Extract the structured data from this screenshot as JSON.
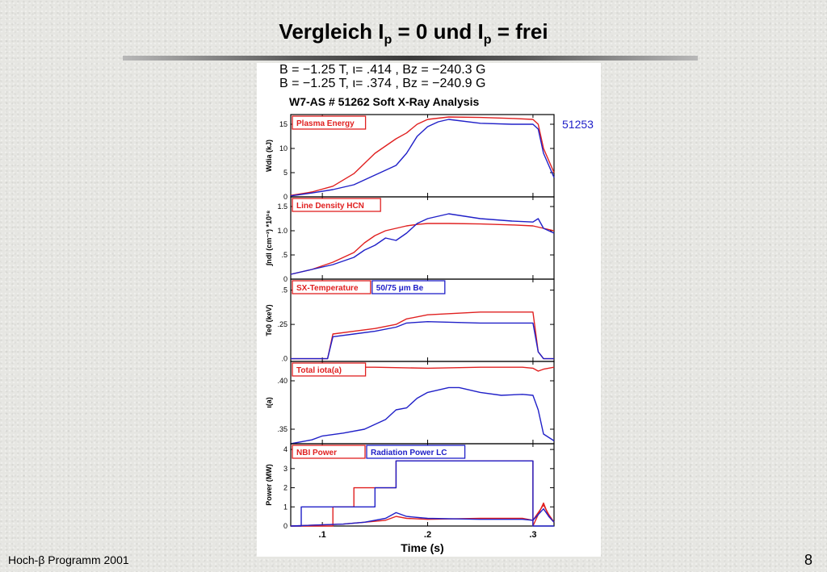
{
  "slide": {
    "title_pre": "Vergleich I",
    "title_sub1": "p",
    "title_mid": " = 0 und I",
    "title_sub2": "p",
    "title_post": " = frei",
    "footer_left": "Hoch-β Programm 2001",
    "page_number": "8"
  },
  "header": {
    "line1": "B = −1.25  T,  ι= .414   ,  Bz = −240.3 G",
    "line2": "B = −1.25  T,  ι= .374   ,  Bz = −240.9 G",
    "line3": "W7-AS # 51262  Soft X-Ray Analysis",
    "shot_label": "51253"
  },
  "colors": {
    "red": "#e02020",
    "blue": "#2020c8"
  },
  "chart_data": {
    "type": "line",
    "xlabel": "Time (s)",
    "xlim": [
      0.07,
      0.32
    ],
    "xticks": [
      0.1,
      0.2,
      0.3
    ],
    "xtick_labels": [
      ".1",
      ".2",
      ".3"
    ],
    "panels": [
      {
        "ylabel": "Wdia (kJ)",
        "ylim": [
          0,
          17
        ],
        "yticks": [
          0,
          5,
          10,
          15
        ],
        "ytick_labels": [
          "0",
          "5",
          "10",
          "15"
        ],
        "legend": [
          {
            "text": "Plasma Energy",
            "color": "red"
          }
        ],
        "series": [
          {
            "color": "red",
            "x": [
              0.07,
              0.09,
              0.11,
              0.13,
              0.15,
              0.17,
              0.18,
              0.19,
              0.2,
              0.22,
              0.25,
              0.28,
              0.3,
              0.305,
              0.31,
              0.32
            ],
            "y": [
              0.3,
              1,
              2.2,
              4.8,
              9,
              12,
              13.2,
              15,
              16,
              16.5,
              16.4,
              16.2,
              16,
              15,
              10,
              5
            ]
          },
          {
            "color": "blue",
            "x": [
              0.07,
              0.09,
              0.11,
              0.13,
              0.15,
              0.16,
              0.17,
              0.18,
              0.19,
              0.2,
              0.21,
              0.22,
              0.25,
              0.28,
              0.3,
              0.305,
              0.31,
              0.32
            ],
            "y": [
              0.2,
              0.8,
              1.5,
              2.5,
              4.5,
              5.5,
              6.5,
              9,
              12.5,
              14.5,
              15.5,
              16,
              15.2,
              15,
              15,
              14,
              9,
              4
            ]
          }
        ]
      },
      {
        "ylabel": "∫ndl (cm⁻²)  *10¹⁸",
        "ylim": [
          0,
          1.7
        ],
        "yticks": [
          0,
          0.5,
          1.0,
          1.5
        ],
        "ytick_labels": [
          "0",
          ".5",
          "1.0",
          "1.5"
        ],
        "legend": [
          {
            "text": "Line Density HCN",
            "color": "red"
          }
        ],
        "series": [
          {
            "color": "red",
            "x": [
              0.07,
              0.09,
              0.11,
              0.13,
              0.14,
              0.15,
              0.16,
              0.17,
              0.18,
              0.19,
              0.2,
              0.22,
              0.25,
              0.28,
              0.3,
              0.31,
              0.32
            ],
            "y": [
              0.1,
              0.2,
              0.35,
              0.55,
              0.75,
              0.9,
              1.0,
              1.05,
              1.1,
              1.13,
              1.15,
              1.15,
              1.14,
              1.12,
              1.1,
              1.05,
              1.0
            ]
          },
          {
            "color": "blue",
            "x": [
              0.07,
              0.09,
              0.11,
              0.13,
              0.14,
              0.15,
              0.16,
              0.17,
              0.18,
              0.19,
              0.2,
              0.21,
              0.22,
              0.25,
              0.28,
              0.3,
              0.305,
              0.31,
              0.32
            ],
            "y": [
              0.1,
              0.2,
              0.3,
              0.45,
              0.6,
              0.7,
              0.85,
              0.8,
              0.95,
              1.15,
              1.25,
              1.3,
              1.35,
              1.25,
              1.2,
              1.18,
              1.25,
              1.05,
              0.95
            ]
          }
        ]
      },
      {
        "ylabel": "Te0 (keV)",
        "ylim": [
          -0.02,
          0.58
        ],
        "yticks": [
          0,
          0.25,
          0.5
        ],
        "ytick_labels": [
          ".0",
          ".25",
          ".5"
        ],
        "legend": [
          {
            "text": "SX-Temperature",
            "color": "red"
          },
          {
            "text": "50/75  μm Be",
            "color": "blue"
          }
        ],
        "series": [
          {
            "color": "red",
            "x": [
              0.07,
              0.09,
              0.1,
              0.105,
              0.11,
              0.13,
              0.15,
              0.17,
              0.18,
              0.2,
              0.25,
              0.29,
              0.3,
              0.305,
              0.31,
              0.32
            ],
            "y": [
              0,
              0,
              0,
              0,
              0.18,
              0.2,
              0.22,
              0.25,
              0.29,
              0.32,
              0.34,
              0.34,
              0.34,
              0.05,
              0,
              0
            ]
          },
          {
            "color": "blue",
            "x": [
              0.07,
              0.09,
              0.1,
              0.105,
              0.11,
              0.13,
              0.15,
              0.17,
              0.18,
              0.2,
              0.25,
              0.29,
              0.3,
              0.305,
              0.31,
              0.32
            ],
            "y": [
              0,
              0,
              0,
              0,
              0.16,
              0.18,
              0.2,
              0.23,
              0.26,
              0.27,
              0.26,
              0.26,
              0.26,
              0.05,
              0,
              0
            ]
          }
        ]
      },
      {
        "ylabel": "ι(a)",
        "ylim": [
          0.335,
          0.42
        ],
        "yticks": [
          0.35,
          0.4
        ],
        "ytick_labels": [
          ".35",
          ".40"
        ],
        "legend": [
          {
            "text": "Total iota(a)",
            "color": "red"
          }
        ],
        "series": [
          {
            "color": "red",
            "x": [
              0.1,
              0.15,
              0.2,
              0.25,
              0.29,
              0.3,
              0.305,
              0.31,
              0.32
            ],
            "y": [
              0.414,
              0.414,
              0.413,
              0.414,
              0.414,
              0.413,
              0.41,
              0.412,
              0.414
            ]
          },
          {
            "color": "blue",
            "x": [
              0.07,
              0.09,
              0.1,
              0.12,
              0.14,
              0.15,
              0.16,
              0.17,
              0.18,
              0.19,
              0.2,
              0.22,
              0.23,
              0.25,
              0.27,
              0.29,
              0.3,
              0.305,
              0.31,
              0.32
            ],
            "y": [
              0.335,
              0.339,
              0.343,
              0.346,
              0.35,
              0.355,
              0.36,
              0.37,
              0.372,
              0.382,
              0.388,
              0.393,
              0.393,
              0.388,
              0.385,
              0.386,
              0.385,
              0.37,
              0.345,
              0.338
            ]
          }
        ]
      },
      {
        "ylabel": "Power (MW)",
        "ylim": [
          0,
          4.3
        ],
        "yticks": [
          0,
          1,
          2,
          3,
          4
        ],
        "ytick_labels": [
          "0",
          "1",
          "2",
          "3",
          "4"
        ],
        "legend": [
          {
            "text": "NBI Power",
            "color": "red"
          },
          {
            "text": "Radiation Power LC",
            "color": "blue"
          }
        ],
        "series": [
          {
            "color": "red",
            "x": [
              0.07,
              0.11,
              0.11,
              0.13,
              0.13,
              0.17,
              0.17,
              0.3,
              0.3,
              0.31,
              0.315,
              0.32
            ],
            "y": [
              0,
              0,
              1,
              1,
              2,
              2,
              3.4,
              3.4,
              0,
              1.2,
              0.5,
              0.2
            ]
          },
          {
            "color": "blue",
            "x": [
              0.07,
              0.08,
              0.08,
              0.15,
              0.15,
              0.17,
              0.17,
              0.3,
              0.3,
              0.32
            ],
            "y": [
              0,
              0,
              1,
              1,
              2,
              2,
              3.4,
              3.4,
              0,
              0
            ]
          },
          {
            "color": "red",
            "x": [
              0.07,
              0.12,
              0.14,
              0.16,
              0.17,
              0.18,
              0.2,
              0.25,
              0.29,
              0.3,
              0.31,
              0.315,
              0.32
            ],
            "y": [
              0,
              0.1,
              0.2,
              0.3,
              0.5,
              0.4,
              0.35,
              0.4,
              0.4,
              0.3,
              1.1,
              0.6,
              0.2
            ]
          },
          {
            "color": "blue",
            "x": [
              0.07,
              0.12,
              0.14,
              0.16,
              0.17,
              0.18,
              0.2,
              0.25,
              0.29,
              0.3,
              0.31,
              0.315,
              0.32
            ],
            "y": [
              0,
              0.1,
              0.2,
              0.4,
              0.7,
              0.5,
              0.4,
              0.35,
              0.35,
              0.3,
              0.9,
              0.5,
              0.2
            ]
          }
        ]
      }
    ]
  }
}
